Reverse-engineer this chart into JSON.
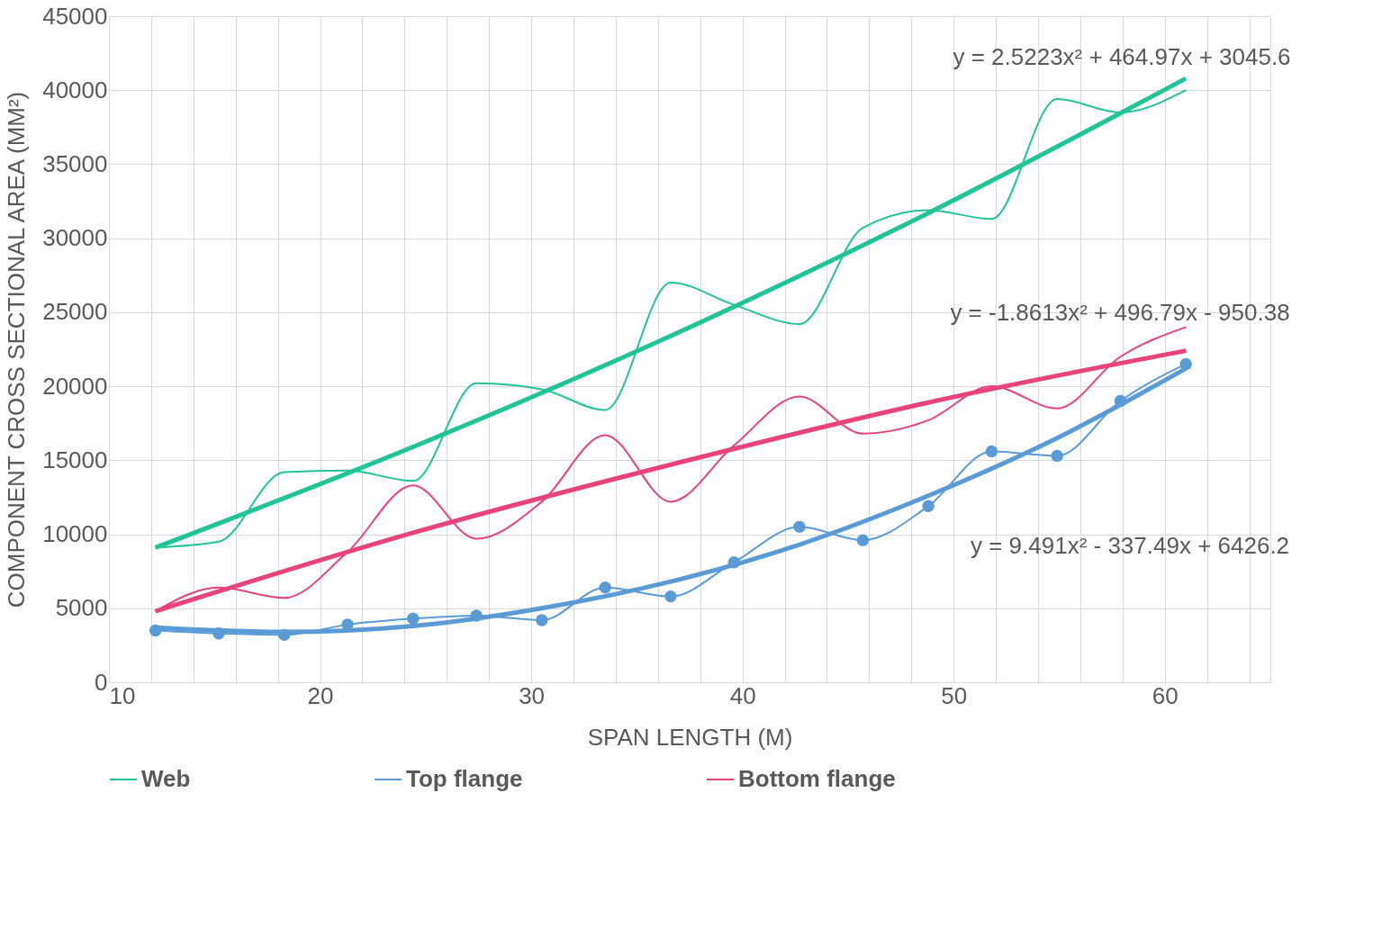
{
  "chart_data": {
    "type": "line",
    "xlabel": "SPAN LENGTH (M)",
    "ylabel": "COMPONENT CROSS SECTIONAL AREA (MM²)",
    "xlim": [
      10,
      65
    ],
    "ylim": [
      0,
      45000
    ],
    "xticks": [
      10,
      {
        "value": 12,
        "label": null
      },
      {
        "value": 14,
        "label": null
      },
      {
        "value": 16,
        "label": null
      },
      {
        "value": 18,
        "label": null
      },
      20,
      {
        "value": 22,
        "label": null
      },
      {
        "value": 24,
        "label": null
      },
      {
        "value": 26,
        "label": null
      },
      {
        "value": 28,
        "label": null
      },
      30,
      {
        "value": 32,
        "label": null
      },
      {
        "value": 34,
        "label": null
      },
      {
        "value": 36,
        "label": null
      },
      {
        "value": 38,
        "label": null
      },
      40,
      {
        "value": 42,
        "label": null
      },
      {
        "value": 44,
        "label": null
      },
      {
        "value": 46,
        "label": null
      },
      {
        "value": 48,
        "label": null
      },
      50,
      {
        "value": 52,
        "label": null
      },
      {
        "value": 54,
        "label": null
      },
      {
        "value": 56,
        "label": null
      },
      {
        "value": 58,
        "label": null
      },
      60,
      {
        "value": 62,
        "label": null
      },
      {
        "value": 64,
        "label": null
      }
    ],
    "yticks": [
      0,
      5000,
      10000,
      15000,
      20000,
      25000,
      30000,
      35000,
      40000,
      45000
    ],
    "grid": true,
    "legend": "bottom",
    "line_style": "solid",
    "x": [
      12.2,
      15.2,
      18.3,
      21.3,
      24.4,
      27.4,
      30.5,
      33.5,
      36.6,
      39.6,
      42.7,
      45.7,
      48.8,
      51.8,
      54.9,
      57.9,
      61.0
    ],
    "series": [
      {
        "name": "Web",
        "color": "#21c497",
        "values": [
          9100,
          9500,
          14200,
          14300,
          13600,
          20200,
          19800,
          18400,
          27000,
          25500,
          24200,
          30700,
          31900,
          31300,
          39400,
          38500,
          40000
        ]
      },
      {
        "name": "Top flange",
        "color": "#5b9bd5",
        "marker": "circle",
        "values": [
          3500,
          3300,
          3200,
          3900,
          4300,
          4500,
          4200,
          6400,
          5800,
          8100,
          10500,
          9600,
          11900,
          15600,
          15300,
          19000,
          21500
        ]
      },
      {
        "name": "Bottom flange",
        "color": "#e8437a",
        "values": [
          4800,
          6400,
          5700,
          8800,
          13300,
          9700,
          12200,
          16700,
          12200,
          16000,
          19300,
          16800,
          17700,
          20000,
          18500,
          22000,
          24000
        ]
      },
      {
        "color": "#21c497",
        "x": [
          12.2,
          24.4,
          36.6,
          48.8,
          61.0
        ],
        "values": [
          9100,
          15900,
          23400,
          31700,
          40800
        ]
      },
      {
        "color": "#5b9bd5",
        "x": [
          12.2,
          18.3,
          24.4,
          30.5,
          36.6,
          42.7,
          48.8,
          54.9,
          61.0
        ],
        "values": [
          3700,
          3400,
          3800,
          5000,
          6800,
          9300,
          12600,
          16500,
          21200
        ]
      },
      {
        "color": "#e8437a",
        "x": [
          12.2,
          24.4,
          36.6,
          48.8,
          61.0
        ],
        "values": [
          4800,
          10100,
          14700,
          18900,
          22400
        ]
      }
    ],
    "annotations": [
      "y = 2.5223x² + 464.97x + 3045.6",
      "y = -1.8613x² + 496.79x - 950.38",
      "y = 9.491x² - 337.49x + 6426.2"
    ]
  }
}
